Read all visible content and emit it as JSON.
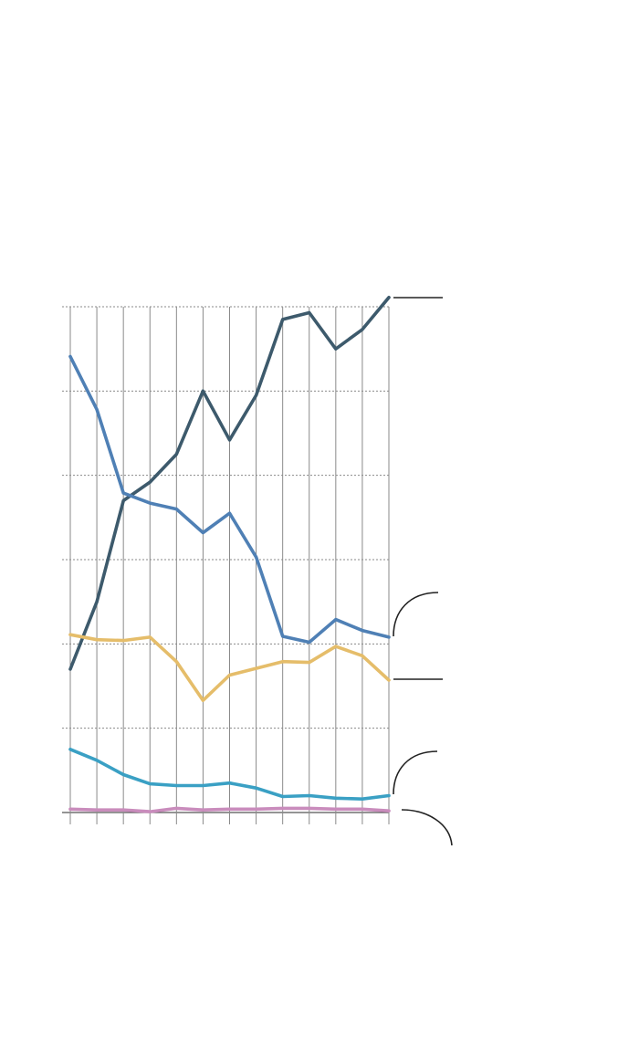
{
  "chart_data": {
    "type": "line",
    "title": "",
    "xlabel": "",
    "ylabel": "",
    "x": [
      1,
      2,
      3,
      4,
      5,
      6,
      7,
      8,
      9,
      10,
      11,
      12,
      13
    ],
    "ylim": [
      0,
      60
    ],
    "yticks": [
      0,
      10,
      20,
      30,
      40,
      50,
      60
    ],
    "grid": true,
    "series": [
      {
        "color": "#3d5a6c",
        "values": [
          17,
          25,
          37,
          39.2,
          42.5,
          50,
          44.2,
          49.5,
          58.5,
          59.3,
          55,
          57.3,
          61.1
        ]
      },
      {
        "color": "#4f80b5",
        "values": [
          54.1,
          47.8,
          37.9,
          36.7,
          36,
          33.2,
          35.5,
          30.3,
          20.9,
          20.2,
          22.9,
          21.6,
          20.8
        ]
      },
      {
        "color": "#e5bd6a",
        "values": [
          21.1,
          20.5,
          20.4,
          20.8,
          17.9,
          13.3,
          16.3,
          17.1,
          17.9,
          17.8,
          19.7,
          18.6,
          15.7
        ]
      },
      {
        "color": "#3aa0c4",
        "values": [
          7.5,
          6.2,
          4.5,
          3.4,
          3.2,
          3.2,
          3.5,
          2.9,
          1.9,
          2.0,
          1.7,
          1.6,
          2.0
        ]
      },
      {
        "color": "#c98cbc",
        "values": [
          0.4,
          0.3,
          0.3,
          0.1,
          0.5,
          0.3,
          0.4,
          0.4,
          0.5,
          0.5,
          0.4,
          0.4,
          0.2
        ]
      }
    ]
  }
}
